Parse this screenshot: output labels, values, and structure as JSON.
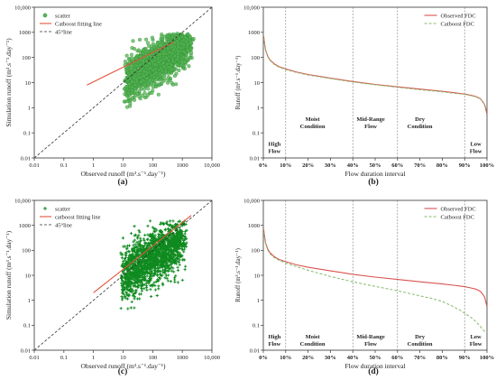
{
  "figure": {
    "panel_labels": [
      "(a)",
      "(b)",
      "(c)",
      "(d)"
    ]
  },
  "colors": {
    "scatter_fill": "#55b455",
    "scatter_edge": "#2a8a2a",
    "scatter_dense": "#0f8a1f",
    "fit_line": "#e0553a",
    "ref_line": "#333333",
    "observed_fdc": "#d9534f",
    "catboost_fdc": "#86b96a",
    "divider": "#777777"
  },
  "chart_data": [
    {
      "type": "scatter",
      "panel": "(a)",
      "xlabel": "Observed runoff (m³.s⁻¹.day⁻¹)",
      "ylabel": "Simulation runoff (m³.s⁻¹.day⁻¹)",
      "xscale": "log",
      "yscale": "log",
      "xlim": [
        0.01,
        10000
      ],
      "ylim": [
        0.01,
        10000
      ],
      "xticks": [
        "0.01",
        "0.1",
        "1",
        "10",
        "100",
        "1000",
        "10,000"
      ],
      "yticks": [
        "0.01",
        "0.1",
        "1",
        "10",
        "100",
        "1000",
        "10,000"
      ],
      "legend": {
        "position": "top-left",
        "entries": [
          "scatter",
          "Catboost fitting line",
          "45°line"
        ]
      },
      "marker": "circle",
      "fit_line": {
        "x": [
          0.6,
          500
        ],
        "y": [
          8,
          400
        ]
      },
      "ref_line": {
        "x": [
          0.01,
          10000
        ],
        "y": [
          0.01,
          10000
        ]
      },
      "cloud": {
        "x_range": [
          0.6,
          2500
        ],
        "y_min": 0.25,
        "y_max": 900,
        "spread": 0.45,
        "count": 1400,
        "seed": 11
      }
    },
    {
      "type": "line",
      "panel": "(b)",
      "xlabel": "Flow duration interval",
      "ylabel": "Runoff (m³.s⁻¹.day⁻¹)",
      "yscale": "log",
      "xlim": [
        0,
        100
      ],
      "ylim": [
        0.01,
        10000
      ],
      "xticks": [
        "0%",
        "10%",
        "20%",
        "30%",
        "40%",
        "50%",
        "60%",
        "70%",
        "80%",
        "90%",
        "100%"
      ],
      "yticks": [
        "0.01",
        "0.1",
        "1",
        "10",
        "100",
        "1000",
        "10,000"
      ],
      "dividers": [
        10,
        40,
        60,
        90
      ],
      "zones": [
        {
          "lines": [
            "High",
            "Flow"
          ],
          "x": 5,
          "y": 0.03
        },
        {
          "lines": [
            "Moist",
            "Condition"
          ],
          "x": 22,
          "y": 0.3
        },
        {
          "lines": [
            "Mid-Range",
            "Flow"
          ],
          "x": 48,
          "y": 0.3
        },
        {
          "lines": [
            "Dry",
            "Condition"
          ],
          "x": 70,
          "y": 0.3
        },
        {
          "lines": [
            "Low",
            "Flow"
          ],
          "x": 95,
          "y": 0.03
        }
      ],
      "legend": {
        "position": "top-right",
        "entries": [
          "Observed FDC",
          "Catboost FDC"
        ]
      },
      "series": [
        {
          "name": "Observed FDC",
          "x": [
            0,
            0.5,
            1,
            2,
            3,
            5,
            7,
            10,
            15,
            20,
            30,
            40,
            50,
            60,
            70,
            80,
            85,
            90,
            93,
            95,
            97,
            98,
            99,
            100
          ],
          "y": [
            900,
            400,
            200,
            110,
            80,
            55,
            43,
            35,
            26,
            21,
            15,
            11,
            8.5,
            6.8,
            5.5,
            4.5,
            4.0,
            3.5,
            3.1,
            2.8,
            2.3,
            1.8,
            1.3,
            0.55
          ]
        },
        {
          "name": "Catboost FDC",
          "x": [
            0,
            0.5,
            1,
            2,
            3,
            5,
            7,
            10,
            15,
            20,
            30,
            40,
            50,
            60,
            70,
            80,
            85,
            90,
            93,
            95,
            97,
            98,
            99,
            100
          ],
          "y": [
            850,
            380,
            190,
            105,
            76,
            52,
            41,
            33,
            25,
            20,
            14.5,
            10.5,
            8.2,
            6.5,
            5.2,
            4.3,
            3.8,
            3.4,
            3.0,
            2.7,
            2.2,
            1.8,
            1.3,
            0.7
          ]
        }
      ]
    },
    {
      "type": "scatter",
      "panel": "(c)",
      "xlabel": "Observed runoff (m³.s⁻¹.day⁻¹)",
      "ylabel": "Simulation runoff (m³.s⁻¹.day⁻¹)",
      "xscale": "log",
      "yscale": "log",
      "xlim": [
        0.01,
        10000
      ],
      "ylim": [
        0.01,
        10000
      ],
      "xticks": [
        "0.01",
        "0.1",
        "1",
        "10",
        "100",
        "1000",
        "10,000"
      ],
      "yticks": [
        "0.01",
        "0.1",
        "1",
        "10",
        "100",
        "1000",
        "10,000"
      ],
      "legend": {
        "position": "top-left",
        "entries": [
          "scatter",
          "catboost fitting line",
          "45°line"
        ]
      },
      "marker": "plus",
      "fit_line": {
        "x": [
          1,
          2000
        ],
        "y": [
          2,
          2500
        ]
      },
      "ref_line": {
        "x": [
          0.01,
          10000
        ],
        "y": [
          0.01,
          10000
        ]
      },
      "cloud": {
        "x_range": [
          0.5,
          1500
        ],
        "y_min": 0.05,
        "y_max": 1500,
        "spread": 0.55,
        "count": 1700,
        "seed": 23
      }
    },
    {
      "type": "line",
      "panel": "(d)",
      "xlabel": "Flow duration interval",
      "ylabel": "Runoff (m³.s⁻¹.day⁻¹)",
      "yscale": "log",
      "xlim": [
        0,
        100
      ],
      "ylim": [
        0.01,
        10000
      ],
      "xticks": [
        "0%",
        "10%",
        "20%",
        "30%",
        "40%",
        "50%",
        "60%",
        "70%",
        "80%",
        "90%",
        "100%"
      ],
      "yticks": [
        "0.01",
        "0.1",
        "1",
        "10",
        "100",
        "1000",
        "10,000"
      ],
      "dividers": [
        10,
        40,
        60,
        90
      ],
      "zones": [
        {
          "lines": [
            "High",
            "Flow"
          ],
          "x": 5,
          "y": 0.03
        },
        {
          "lines": [
            "Moist",
            "Condition"
          ],
          "x": 22,
          "y": 0.03
        },
        {
          "lines": [
            "Mid-Range",
            "Flow"
          ],
          "x": 48,
          "y": 0.03
        },
        {
          "lines": [
            "Dry",
            "Condition"
          ],
          "x": 70,
          "y": 0.03
        },
        {
          "lines": [
            "Low",
            "Flow"
          ],
          "x": 95,
          "y": 0.03
        }
      ],
      "legend": {
        "position": "top-right",
        "entries": [
          "Observed FDC",
          "Catboost FDC"
        ]
      },
      "series": [
        {
          "name": "Observed FDC",
          "x": [
            0,
            0.5,
            1,
            2,
            3,
            5,
            7,
            10,
            15,
            20,
            30,
            40,
            50,
            60,
            70,
            80,
            85,
            90,
            93,
            95,
            97,
            98,
            99,
            100
          ],
          "y": [
            900,
            400,
            200,
            110,
            80,
            55,
            43,
            35,
            26,
            21,
            15,
            11,
            8.5,
            6.8,
            5.5,
            4.5,
            4.0,
            3.5,
            3.1,
            2.8,
            2.3,
            1.8,
            1.3,
            0.55
          ]
        },
        {
          "name": "Catboost FDC",
          "x": [
            0,
            0.5,
            1,
            2,
            3,
            5,
            7,
            10,
            15,
            20,
            30,
            40,
            50,
            60,
            70,
            75,
            80,
            85,
            88,
            90,
            93,
            95,
            97,
            99,
            100
          ],
          "y": [
            800,
            350,
            180,
            100,
            72,
            50,
            40,
            31,
            22,
            16,
            9,
            5.5,
            3.6,
            2.4,
            1.5,
            1.2,
            0.9,
            0.55,
            0.4,
            0.3,
            0.2,
            0.14,
            0.09,
            0.055,
            0.05
          ]
        }
      ]
    }
  ]
}
